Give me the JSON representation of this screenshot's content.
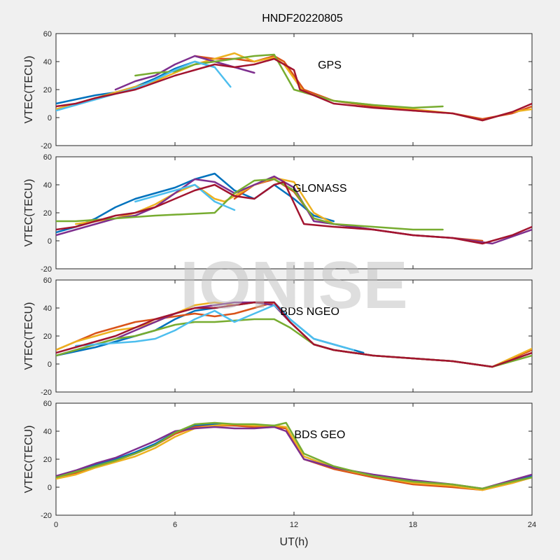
{
  "figure": {
    "title": "HNDF20220805",
    "xlabel": "UT(h)",
    "watermark": "IONISE"
  },
  "colors": {
    "palette": [
      "#0072BD",
      "#D95319",
      "#EDB120",
      "#7E2F8E",
      "#77AC30",
      "#4DBEEE",
      "#A2142F"
    ]
  },
  "chart_data": [
    {
      "type": "line",
      "label": "GPS",
      "ylabel": "VTEC(TECU)",
      "xlim": [
        0,
        24
      ],
      "ylim": [
        -20,
        60
      ],
      "xticks": [
        0,
        6,
        12,
        18,
        24
      ],
      "yticks": [
        -20,
        0,
        20,
        40,
        60
      ],
      "series": [
        {
          "x": [
            0,
            1,
            2,
            3,
            4,
            5,
            6,
            7,
            8
          ],
          "y": [
            10,
            13,
            16,
            18,
            22,
            28,
            35,
            40,
            36
          ]
        },
        {
          "x": [
            7,
            8,
            9,
            10,
            11,
            11.5,
            12.5,
            14,
            16,
            18,
            20,
            21.5,
            23,
            24
          ],
          "y": [
            44,
            42,
            42,
            40,
            44,
            40,
            20,
            12,
            8,
            5,
            3,
            -1,
            3,
            8
          ]
        },
        {
          "x": [
            0,
            1,
            2,
            3,
            4,
            5,
            6,
            7,
            8,
            9,
            10,
            11,
            11.5,
            12.5,
            14,
            16,
            18,
            20,
            21.5,
            23,
            24
          ],
          "y": [
            6,
            10,
            14,
            18,
            22,
            26,
            32,
            38,
            42,
            46,
            40,
            43,
            38,
            18,
            12,
            9,
            6,
            3,
            -2,
            4,
            6
          ]
        },
        {
          "x": [
            3,
            4,
            5,
            6,
            7,
            8,
            9,
            10
          ],
          "y": [
            20,
            26,
            30,
            38,
            44,
            40,
            36,
            32
          ]
        },
        {
          "x": [
            4,
            5,
            6,
            7,
            8,
            9,
            10,
            11,
            12,
            14,
            16,
            18,
            19.5
          ],
          "y": [
            30,
            32,
            33,
            38,
            40,
            42,
            44,
            45,
            20,
            12,
            9,
            7,
            8
          ]
        },
        {
          "x": [
            0,
            1,
            2,
            3,
            4,
            5,
            6,
            7,
            8,
            8.8
          ],
          "y": [
            5,
            9,
            13,
            17,
            21,
            27,
            34,
            40,
            36,
            22
          ]
        },
        {
          "x": [
            0,
            1,
            2,
            3,
            4,
            5,
            6,
            7,
            8,
            9,
            10,
            11,
            12,
            12.3,
            14,
            16,
            18,
            20,
            21.5,
            23,
            24
          ],
          "y": [
            8,
            10,
            14,
            17,
            20,
            25,
            30,
            34,
            38,
            36,
            38,
            42,
            34,
            20,
            10,
            7,
            5,
            3,
            -2,
            4,
            10
          ]
        }
      ]
    },
    {
      "type": "line",
      "label": "GLONASS",
      "ylabel": "VTEC(TECU)",
      "xlim": [
        0,
        24
      ],
      "ylim": [
        -20,
        60
      ],
      "xticks": [
        0,
        6,
        12,
        18,
        24
      ],
      "yticks": [
        -20,
        0,
        20,
        40,
        60
      ],
      "series": [
        {
          "x": [
            0,
            1,
            2,
            3,
            4,
            5,
            6,
            7,
            8,
            9,
            10,
            11,
            12,
            13,
            14
          ],
          "y": [
            6,
            10,
            16,
            24,
            30,
            34,
            38,
            44,
            48,
            36,
            30,
            40,
            30,
            18,
            14
          ]
        },
        {
          "x": [
            9,
            10,
            11,
            12,
            13,
            14,
            16,
            18,
            20,
            21.5
          ],
          "y": [
            30,
            40,
            44,
            35,
            16,
            12,
            8,
            4,
            2,
            0
          ]
        },
        {
          "x": [
            1,
            2,
            3,
            4,
            5,
            6,
            7,
            8,
            8.5,
            10,
            11,
            12,
            13,
            14
          ],
          "y": [
            12,
            14,
            16,
            20,
            26,
            34,
            40,
            30,
            28,
            40,
            45,
            42,
            20,
            12
          ]
        },
        {
          "x": [
            0,
            1,
            2,
            3,
            4,
            5,
            6,
            7,
            8,
            9,
            10,
            11,
            12,
            13,
            16,
            18,
            20,
            22,
            24
          ],
          "y": [
            4,
            8,
            12,
            16,
            18,
            24,
            34,
            44,
            42,
            34,
            40,
            46,
            38,
            14,
            8,
            4,
            2,
            -2,
            8
          ]
        },
        {
          "x": [
            0,
            1,
            2,
            3,
            4,
            5,
            8,
            9,
            10,
            11,
            12,
            13,
            14,
            16,
            18,
            19.5
          ],
          "y": [
            14,
            14,
            15,
            16,
            17,
            18,
            20,
            34,
            43,
            44,
            36,
            16,
            12,
            10,
            8,
            8
          ]
        },
        {
          "x": [
            4,
            5,
            6,
            7,
            8,
            9
          ],
          "y": [
            28,
            32,
            36,
            40,
            28,
            22
          ]
        },
        {
          "x": [
            0,
            1,
            2,
            3,
            4,
            5,
            6,
            7,
            8,
            9,
            10,
            11,
            11.5,
            12.5,
            14,
            16,
            18,
            20,
            21.5,
            23,
            24
          ],
          "y": [
            8,
            10,
            14,
            18,
            20,
            24,
            30,
            36,
            40,
            32,
            30,
            40,
            42,
            12,
            10,
            8,
            4,
            2,
            -2,
            4,
            10
          ]
        }
      ]
    },
    {
      "type": "line",
      "label": "BDS NGEO",
      "ylabel": "VTEC(TECU)",
      "xlim": [
        0,
        24
      ],
      "ylim": [
        -20,
        60
      ],
      "xticks": [
        0,
        6,
        12,
        18,
        24
      ],
      "yticks": [
        -20,
        0,
        20,
        40,
        60
      ],
      "series": [
        {
          "x": [
            0,
            1,
            2,
            3,
            4,
            5,
            6,
            7,
            8,
            9,
            10,
            11,
            11.8,
            13,
            14,
            15.5
          ],
          "y": [
            6,
            9,
            12,
            16,
            20,
            24,
            32,
            38,
            40,
            42,
            44,
            44,
            32,
            18,
            14,
            8
          ]
        },
        {
          "x": [
            0,
            1,
            2,
            3,
            4,
            5,
            6,
            7,
            8,
            9,
            10,
            11,
            11.8,
            13,
            14,
            16,
            18,
            20,
            22,
            24
          ],
          "y": [
            10,
            16,
            22,
            26,
            30,
            32,
            34,
            36,
            34,
            36,
            40,
            44,
            30,
            14,
            10,
            6,
            4,
            2,
            -2,
            10
          ]
        },
        {
          "x": [
            0,
            1,
            2,
            3,
            4,
            5,
            6,
            7,
            8,
            9,
            10,
            11,
            11.8,
            13,
            14,
            16,
            18,
            20,
            22,
            24
          ],
          "y": [
            10,
            16,
            20,
            24,
            26,
            30,
            36,
            42,
            44,
            42,
            44,
            42,
            30,
            14,
            10,
            6,
            4,
            2,
            -2,
            11
          ]
        },
        {
          "x": [
            0,
            1,
            2,
            3,
            4,
            5,
            6,
            7,
            8,
            9,
            10,
            11,
            11.8,
            13,
            14,
            16,
            18,
            20,
            22,
            24
          ],
          "y": [
            6,
            10,
            14,
            18,
            24,
            30,
            36,
            40,
            42,
            44,
            44,
            42,
            30,
            14,
            10,
            6,
            4,
            2,
            -2,
            8
          ]
        },
        {
          "x": [
            0,
            1,
            2,
            3,
            4,
            5,
            6,
            7,
            8,
            9,
            10,
            11,
            11.8,
            13,
            14,
            16,
            18,
            20,
            22,
            24
          ],
          "y": [
            6,
            10,
            14,
            18,
            20,
            24,
            28,
            30,
            30,
            31,
            32,
            32,
            26,
            14,
            10,
            6,
            4,
            2,
            -2,
            6
          ]
        },
        {
          "x": [
            1,
            2,
            3,
            4,
            5,
            6,
            7,
            8,
            9,
            10,
            11,
            11.8,
            13,
            14,
            15
          ],
          "y": [
            13,
            14,
            15,
            16,
            18,
            24,
            32,
            38,
            30,
            36,
            42,
            32,
            18,
            14,
            10
          ]
        },
        {
          "x": [
            0,
            1,
            2,
            3,
            4,
            5,
            6,
            7,
            8,
            9,
            10,
            11,
            11.8,
            13,
            14,
            16,
            18,
            20,
            22,
            24
          ],
          "y": [
            8,
            12,
            16,
            20,
            26,
            32,
            36,
            40,
            40,
            42,
            44,
            44,
            30,
            14,
            10,
            6,
            4,
            2,
            -2,
            8
          ]
        }
      ]
    },
    {
      "type": "line",
      "label": "BDS GEO",
      "ylabel": "VTEC(TECU)",
      "xlim": [
        0,
        24
      ],
      "ylim": [
        -20,
        60
      ],
      "xticks": [
        0,
        6,
        12,
        18,
        24
      ],
      "yticks": [
        -20,
        0,
        20,
        40,
        60
      ],
      "series": [
        {
          "x": [
            0,
            1,
            2,
            3,
            4,
            5,
            6,
            7,
            8,
            9,
            10,
            11,
            11.6,
            12.5,
            14,
            16,
            18,
            20,
            21.5,
            23,
            24
          ],
          "y": [
            7,
            11,
            16,
            20,
            25,
            31,
            39,
            44,
            45,
            44,
            44,
            44,
            42,
            22,
            14,
            8,
            3,
            1,
            -1,
            4,
            8
          ]
        },
        {
          "x": [
            0,
            1,
            2,
            3,
            4,
            5,
            6,
            7,
            8,
            9,
            10,
            11,
            11.6,
            12.5,
            14,
            16,
            18,
            20,
            21.5,
            23,
            24
          ],
          "y": [
            7,
            10,
            15,
            19,
            24,
            30,
            38,
            43,
            44,
            44,
            43,
            43,
            42,
            20,
            13,
            7,
            2,
            0,
            -2,
            3,
            7
          ]
        },
        {
          "x": [
            0,
            1,
            2,
            3,
            4,
            5,
            6,
            7,
            8,
            9,
            10,
            11,
            11.6,
            12.5,
            14,
            16,
            18,
            20,
            21.5,
            23,
            24
          ],
          "y": [
            6,
            9,
            14,
            18,
            22,
            28,
            36,
            42,
            44,
            45,
            44,
            44,
            43,
            22,
            14,
            8,
            3,
            1,
            -2,
            3,
            7
          ]
        },
        {
          "x": [
            0,
            1,
            2,
            3,
            4,
            5,
            6,
            7,
            8,
            9,
            10,
            11,
            11.6,
            12.5,
            14,
            16,
            18,
            20,
            21.5,
            23,
            24
          ],
          "y": [
            8,
            12,
            17,
            21,
            27,
            33,
            40,
            42,
            43,
            42,
            42,
            43,
            40,
            20,
            14,
            9,
            5,
            2,
            -1,
            5,
            9
          ]
        },
        {
          "x": [
            0,
            1,
            2,
            3,
            4,
            5,
            6,
            7,
            8,
            9,
            10,
            11,
            11.6,
            12.5,
            14,
            16,
            18,
            20,
            21.5,
            23,
            24
          ],
          "y": [
            7,
            11,
            15,
            19,
            24,
            30,
            39,
            45,
            46,
            45,
            45,
            44,
            46,
            24,
            15,
            8,
            4,
            2,
            -1,
            4,
            7
          ]
        }
      ]
    }
  ]
}
